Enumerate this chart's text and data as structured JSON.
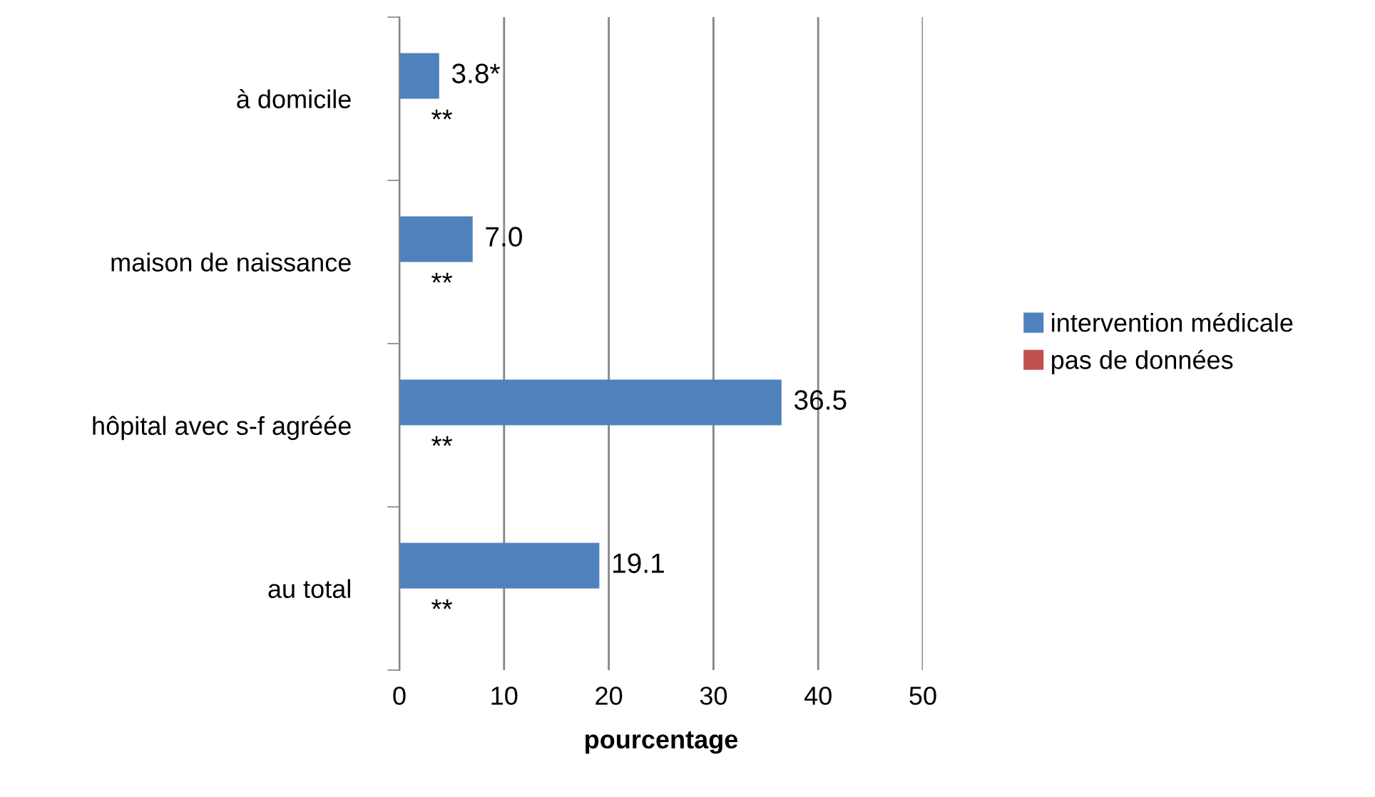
{
  "chart_data": {
    "type": "bar",
    "orientation": "horizontal",
    "categories": [
      "à domicile",
      "maison de naissance",
      "hôpital avec s-f agréée",
      "au total"
    ],
    "series": [
      {
        "name": "intervention médicale",
        "color": "#4f81bd",
        "values": [
          3.8,
          7.0,
          36.5,
          19.1
        ],
        "value_labels": [
          "3.8*",
          "7.0",
          "36.5",
          "19.1"
        ]
      },
      {
        "name": "pas de données",
        "color": "#c0504d",
        "values": [
          0,
          0,
          0,
          0
        ],
        "value_labels": [
          "**",
          "**",
          "**",
          "**"
        ]
      }
    ],
    "xlabel": "pourcentage",
    "xlim": [
      0,
      50
    ],
    "xticks": [
      0,
      10,
      20,
      30,
      40,
      50
    ],
    "grid": "x",
    "legend": "right"
  }
}
